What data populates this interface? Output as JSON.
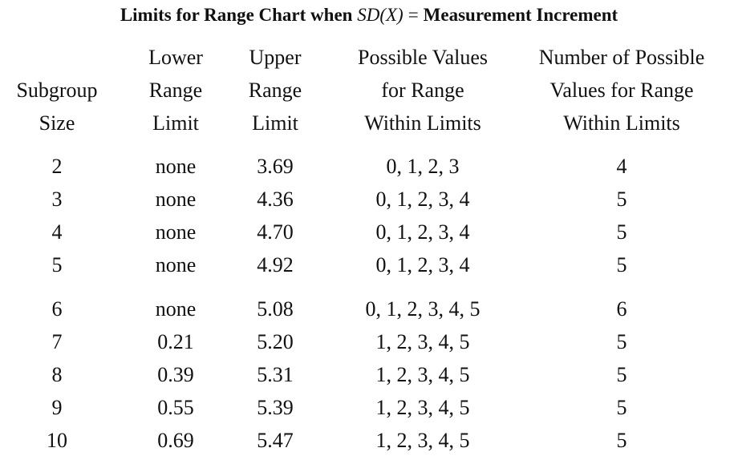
{
  "title": {
    "prefix": "Limits for Range Chart  when ",
    "expr": "SD(X)",
    "equals": "=",
    "suffix": "Measurement Increment"
  },
  "table": {
    "headers": [
      [
        "",
        "Subgroup",
        "Size"
      ],
      [
        "Lower",
        "Range",
        "Limit"
      ],
      [
        "Upper",
        "Range",
        "Limit"
      ],
      [
        "Possible Values",
        "for Range",
        "Within Limits"
      ],
      [
        "Number of Possible",
        "Values for Range",
        "Within Limits"
      ]
    ],
    "rows": [
      [
        "2",
        "none",
        "3.69",
        "0, 1, 2, 3",
        "4"
      ],
      [
        "3",
        "none",
        "4.36",
        "0, 1, 2, 3, 4",
        "5"
      ],
      [
        "4",
        "none",
        "4.70",
        "0, 1, 2, 3, 4",
        "5"
      ],
      [
        "5",
        "none",
        "4.92",
        "0, 1, 2, 3, 4",
        "5"
      ],
      [
        "6",
        "none",
        "5.08",
        "0, 1, 2, 3, 4, 5",
        "6"
      ],
      [
        "7",
        "0.21",
        "5.20",
        "1, 2, 3, 4, 5",
        "5"
      ],
      [
        "8",
        "0.39",
        "5.31",
        "1, 2, 3, 4, 5",
        "5"
      ],
      [
        "9",
        "0.55",
        "5.39",
        "1, 2, 3, 4, 5",
        "5"
      ],
      [
        "10",
        "0.69",
        "5.47",
        "1, 2, 3, 4, 5",
        "5"
      ]
    ]
  }
}
